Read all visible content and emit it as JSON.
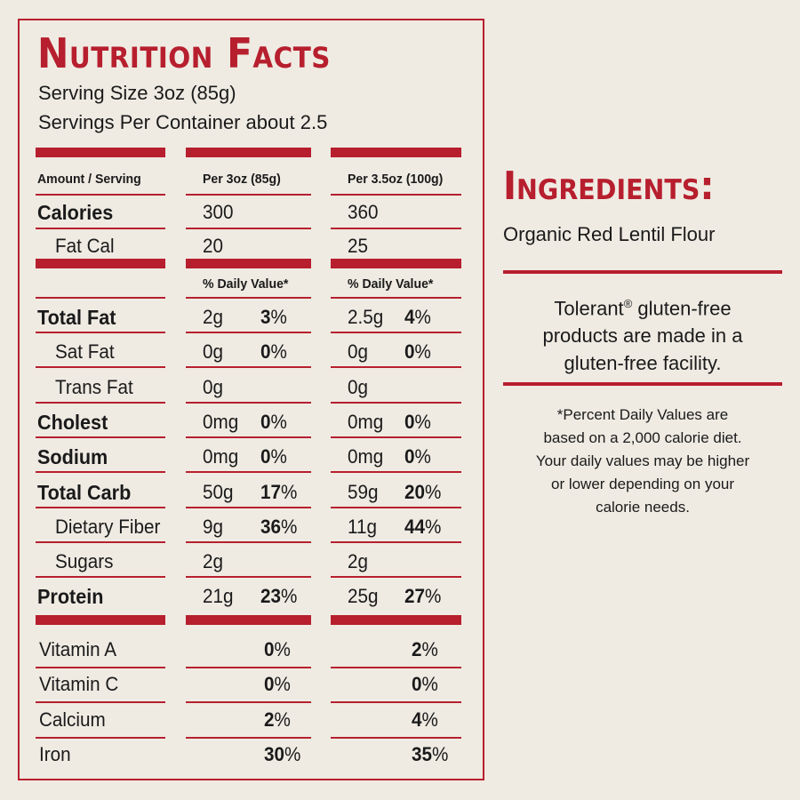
{
  "panel": {
    "title": "Nutrition Facts",
    "serving_size": "Serving Size 3oz (85g)",
    "servings_per_container": "Servings Per Container about 2.5",
    "headers": {
      "amount": "Amount / Serving",
      "col1": "Per 3oz (85g)",
      "col2": "Per 3.5oz (100g)",
      "dv1": "% Daily Value*",
      "dv2": "% Daily Value*"
    },
    "calories": [
      {
        "label": "Calories",
        "c1": "300",
        "c2": "360"
      },
      {
        "label": "Fat Cal",
        "c1": "20",
        "c2": "25"
      }
    ],
    "nutrients": [
      {
        "label": "Total Fat",
        "v1": "2g",
        "p1": "3",
        "v2": "2.5g",
        "p2": "4"
      },
      {
        "label": "Sat Fat",
        "v1": "0g",
        "p1": "0",
        "v2": "0g",
        "p2": "0"
      },
      {
        "label": "Trans Fat",
        "v1": "0g",
        "p1": "",
        "v2": "0g",
        "p2": ""
      },
      {
        "label": "Cholest",
        "v1": "0mg",
        "p1": "0",
        "v2": "0mg",
        "p2": "0"
      },
      {
        "label": "Sodium",
        "v1": "0mg",
        "p1": "0",
        "v2": "0mg",
        "p2": "0"
      },
      {
        "label": "Total Carb",
        "v1": "50g",
        "p1": "17",
        "v2": "59g",
        "p2": "20"
      },
      {
        "label": "Dietary Fiber",
        "v1": "9g",
        "p1": "36",
        "v2": "11g",
        "p2": "44"
      },
      {
        "label": "Sugars",
        "v1": "2g",
        "p1": "",
        "v2": "2g",
        "p2": ""
      },
      {
        "label": "Protein",
        "v1": "21g",
        "p1": "23",
        "v2": "25g",
        "p2": "27"
      }
    ],
    "vitamins": [
      {
        "label": "Vitamin A",
        "p1": "0",
        "p2": "2"
      },
      {
        "label": "Vitamin C",
        "p1": "0",
        "p2": "0"
      },
      {
        "label": "Calcium",
        "p1": "2",
        "p2": "4"
      },
      {
        "label": "Iron",
        "p1": "30",
        "p2": "35"
      }
    ],
    "percent_sign": "%"
  },
  "ingredients": {
    "title": "Ingredients:",
    "text": "Organic Red Lentil Flour"
  },
  "tolerant": {
    "line1_brand": "Tolerant",
    "line1_rest": " gluten-free",
    "reg_mark": "®",
    "line2": "products are made in a",
    "line3": "gluten-free facility."
  },
  "footnote": {
    "lines": [
      "*Percent Daily Values are",
      "based on  a 2,000 calorie diet.",
      "Your daily values may be higher",
      "or lower depending on your",
      "calorie needs."
    ]
  },
  "colors": {
    "accent": "#b71f2e",
    "background": "#efebe3",
    "text": "#1a1a1a"
  }
}
